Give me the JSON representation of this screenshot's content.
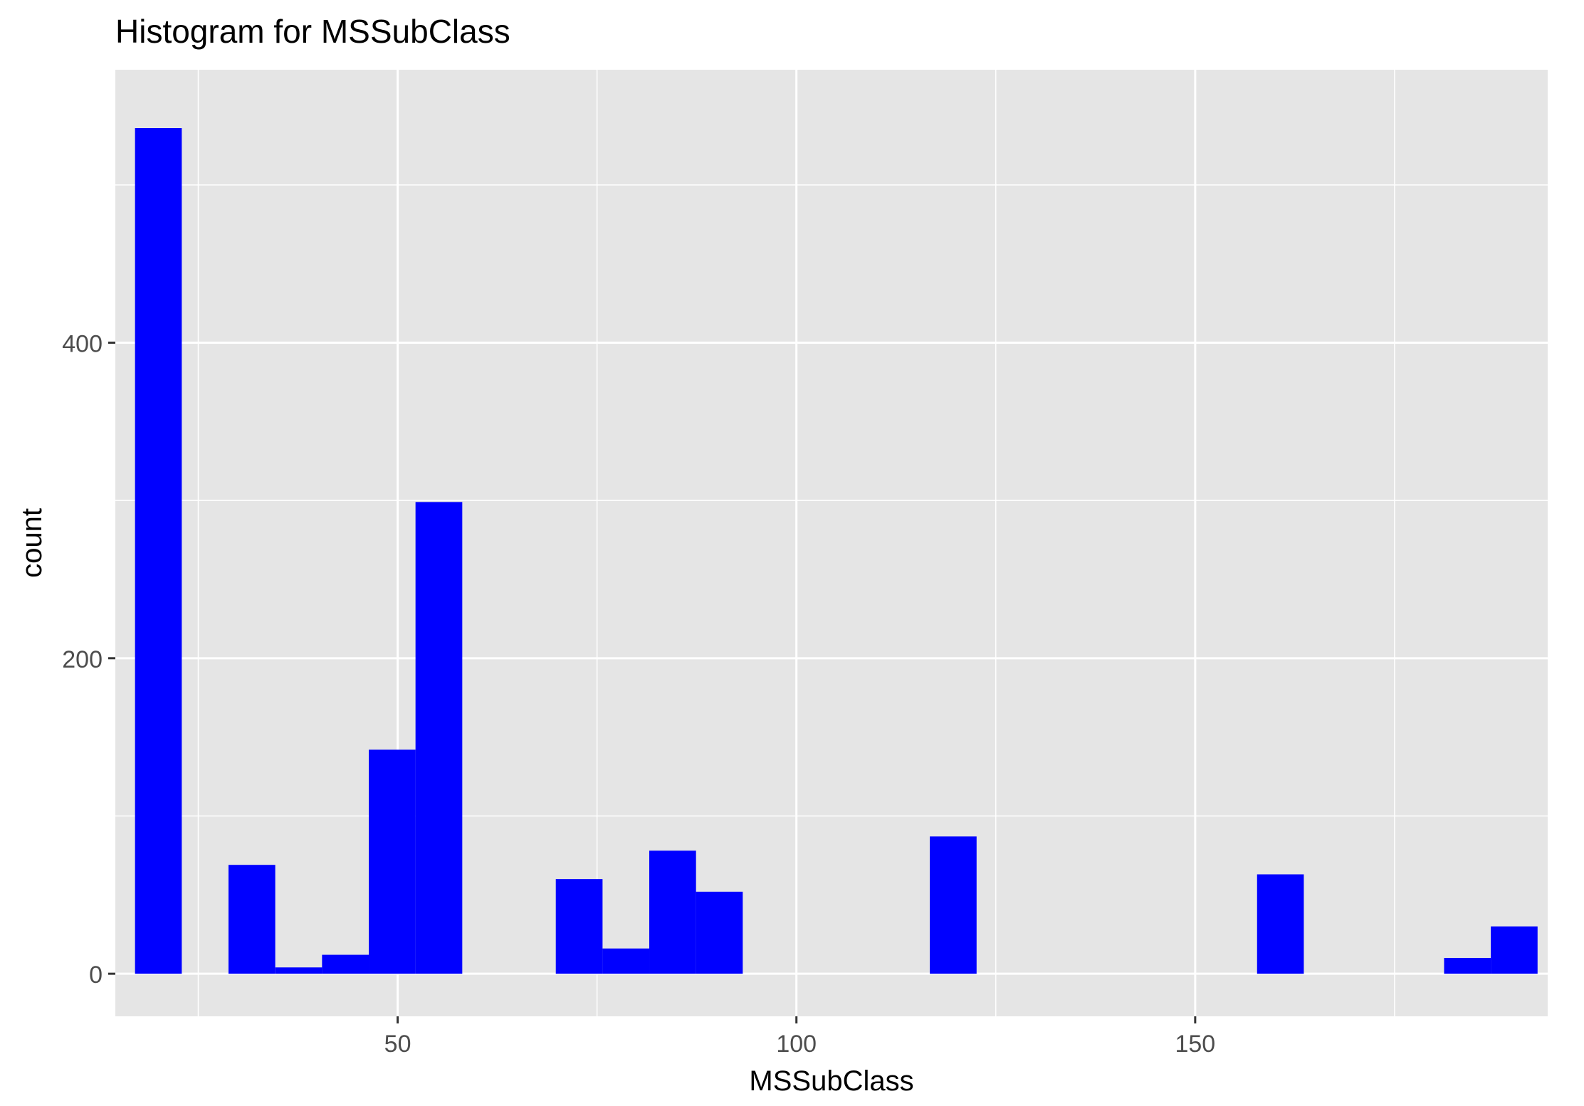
{
  "chart_data": {
    "type": "bar",
    "title": "Histogram for MSSubClass",
    "xlabel": "MSSubClass",
    "ylabel": "count",
    "xlim": [
      14.6,
      194.2
    ],
    "ylim": [
      -27,
      573
    ],
    "x_ticks": [
      50,
      100,
      150
    ],
    "x_minor_ticks": [
      25,
      75,
      125,
      175
    ],
    "y_ticks": [
      0,
      200,
      400
    ],
    "y_minor_ticks": [
      100,
      300,
      500
    ],
    "grid": true,
    "bin_width": 5.862,
    "bar_color": "#0000FF",
    "panel_color": "#E5E5E5",
    "grid_color": "#FFFFFF",
    "bins": [
      {
        "x_center": 20.0,
        "count": 536
      },
      {
        "x_center": 31.72,
        "count": 69
      },
      {
        "x_center": 43.45,
        "count": 12
      },
      {
        "x_center": 49.31,
        "count": 142
      },
      {
        "x_center": 55.17,
        "count": 299
      },
      {
        "x_center": 37.59,
        "count": 4
      },
      {
        "x_center": 72.76,
        "count": 60
      },
      {
        "x_center": 78.62,
        "count": 16
      },
      {
        "x_center": 84.48,
        "count": 78
      },
      {
        "x_center": 90.34,
        "count": 52
      },
      {
        "x_center": 119.66,
        "count": 87
      },
      {
        "x_center": 160.69,
        "count": 63
      },
      {
        "x_center": 184.14,
        "count": 10
      },
      {
        "x_center": 190.0,
        "count": 30
      }
    ]
  }
}
